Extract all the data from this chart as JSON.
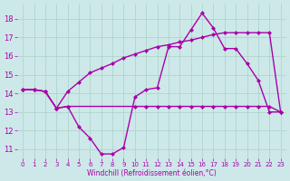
{
  "xlabel": "Windchill (Refroidissement éolien,°C)",
  "background_color": "#cde8e8",
  "grid_color": "#b0d4cc",
  "line_color": "#aa00aa",
  "xlim": [
    -0.5,
    23.5
  ],
  "ylim": [
    10.5,
    18.8
  ],
  "yticks": [
    11,
    12,
    13,
    14,
    15,
    16,
    17,
    18
  ],
  "xticks": [
    0,
    1,
    2,
    3,
    4,
    5,
    6,
    7,
    8,
    9,
    10,
    11,
    12,
    13,
    14,
    15,
    16,
    17,
    18,
    19,
    20,
    21,
    22,
    23
  ],
  "line1_x": [
    0,
    1,
    2,
    3,
    4,
    5,
    6,
    7,
    8,
    9,
    10,
    11,
    12,
    13,
    14,
    15,
    16,
    17,
    18,
    19,
    20,
    21,
    22,
    23
  ],
  "line1_y": [
    14.2,
    14.2,
    14.1,
    13.2,
    13.3,
    12.2,
    11.6,
    10.75,
    10.75,
    11.1,
    13.8,
    14.2,
    14.3,
    16.5,
    16.5,
    17.4,
    18.3,
    17.5,
    16.4,
    16.4,
    15.6,
    14.7,
    13.0,
    13.0
  ],
  "line2_x": [
    0,
    1,
    2,
    3,
    4,
    10,
    11,
    12,
    13,
    14,
    15,
    16,
    17,
    18,
    19,
    20,
    21,
    22,
    23
  ],
  "line2_y": [
    14.2,
    14.2,
    14.1,
    13.2,
    13.3,
    13.3,
    13.3,
    13.3,
    13.3,
    13.3,
    13.3,
    13.3,
    13.3,
    13.3,
    13.3,
    13.3,
    13.3,
    13.3,
    13.0
  ],
  "line3_x": [
    0,
    1,
    2,
    3,
    4,
    5,
    6,
    7,
    8,
    9,
    10,
    11,
    12,
    13,
    14,
    15,
    16,
    17,
    18,
    19,
    20,
    21,
    22,
    23
  ],
  "line3_y": [
    14.2,
    14.2,
    14.1,
    13.2,
    14.1,
    14.6,
    15.1,
    15.35,
    15.6,
    15.9,
    16.1,
    16.3,
    16.5,
    16.6,
    16.75,
    16.85,
    17.0,
    17.15,
    17.25,
    17.25,
    17.25,
    17.25,
    17.25,
    13.0
  ],
  "marker": "D",
  "markersize": 2.5,
  "linewidth": 1.0
}
